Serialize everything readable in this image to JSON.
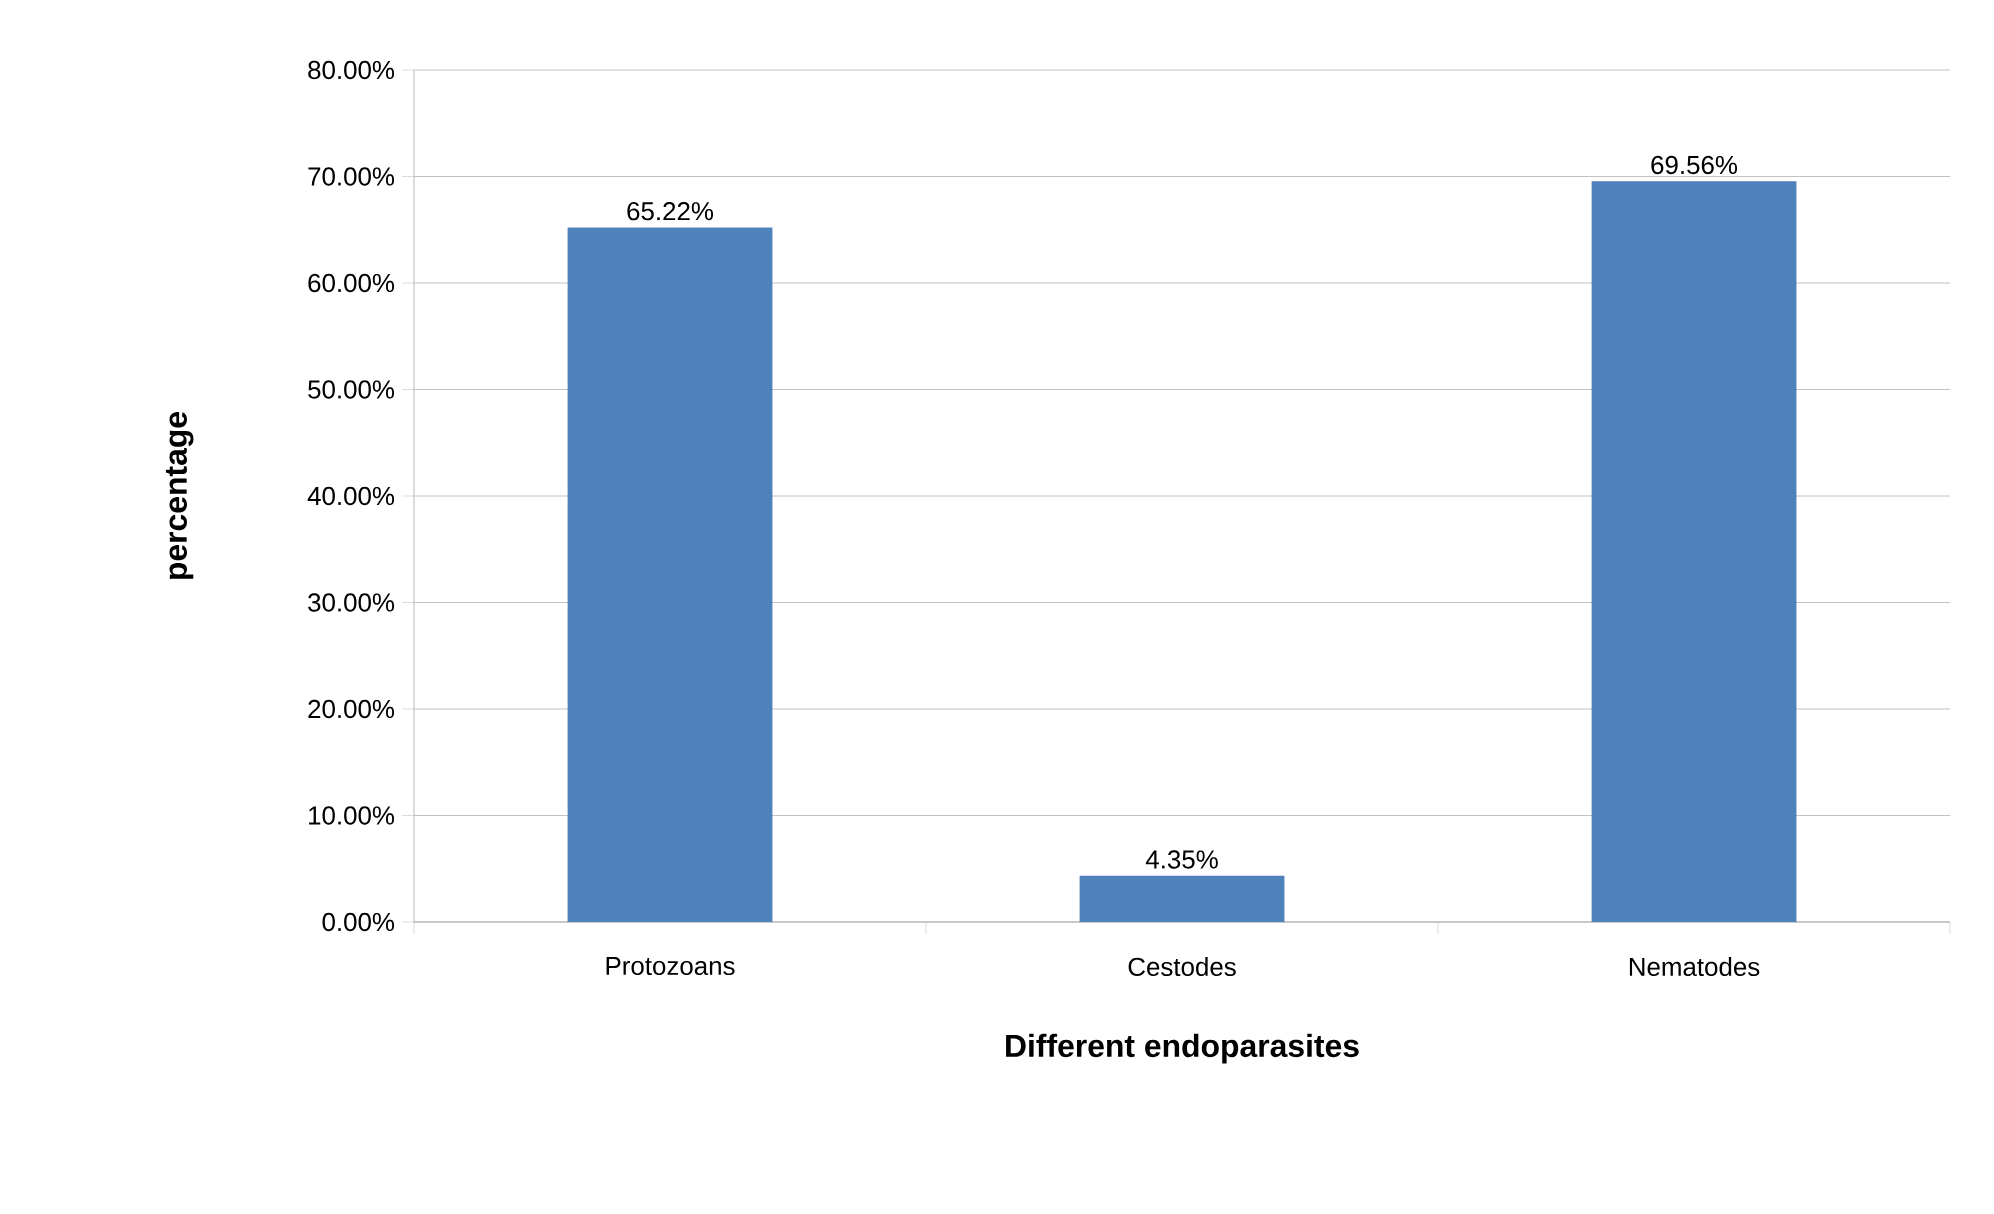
{
  "chart_data": {
    "type": "bar",
    "xlabel": "Different endoparasites",
    "ylabel": "percentage",
    "categories": [
      "Protozoans",
      "Cestodes",
      "Nematodes"
    ],
    "values": [
      65.22,
      4.35,
      69.56
    ],
    "value_labels": [
      "65.22%",
      "4.35%",
      "69.56%"
    ],
    "color": "#4f81bd",
    "ylim": [
      0,
      80
    ],
    "yticks": [
      {
        "value": 0,
        "label": "0.00%"
      },
      {
        "value": 10,
        "label": "10.00%"
      },
      {
        "value": 20,
        "label": "20.00%"
      },
      {
        "value": 30,
        "label": "30.00%"
      },
      {
        "value": 40,
        "label": "40.00%"
      },
      {
        "value": 50,
        "label": "50.00%"
      },
      {
        "value": 60,
        "label": "60.00%"
      },
      {
        "value": 70,
        "label": "70.00%"
      },
      {
        "value": 80,
        "label": "80.00%"
      }
    ],
    "grid": "y"
  }
}
